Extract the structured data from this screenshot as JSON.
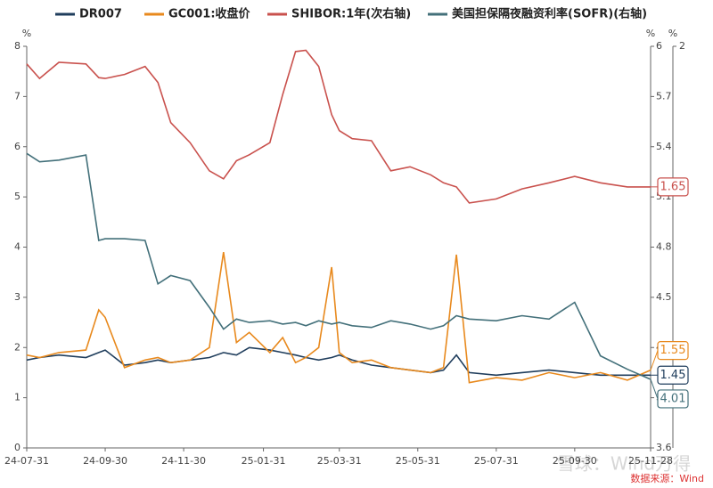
{
  "chart_data": {
    "type": "line",
    "legend_position": "top",
    "axis_units": [
      "%",
      "%",
      "%"
    ],
    "x": [
      "24-07-31",
      "24-08-10",
      "24-08-25",
      "24-09-15",
      "24-09-25",
      "24-09-30",
      "24-10-15",
      "24-10-31",
      "24-11-10",
      "24-11-20",
      "24-12-05",
      "24-12-20",
      "24-12-31",
      "25-01-10",
      "25-01-20",
      "25-02-05",
      "25-02-15",
      "25-02-25",
      "25-03-05",
      "25-03-15",
      "25-03-25",
      "25-03-31",
      "25-04-10",
      "25-04-25",
      "25-05-10",
      "25-05-25",
      "25-06-10",
      "25-06-20",
      "25-06-30",
      "25-07-10",
      "25-07-31",
      "25-08-20",
      "25-09-10",
      "25-09-30",
      "25-10-20",
      "25-11-10",
      "25-11-28"
    ],
    "xlim": [
      "24-07-31",
      "25-11-28"
    ],
    "xticks": [
      "24-07-31",
      "24-09-30",
      "24-11-30",
      "25-01-31",
      "25-03-31",
      "25-05-31",
      "25-07-31",
      "25-09-30",
      "25-11-28"
    ],
    "ylim": [
      0,
      8
    ],
    "yticks": [
      0,
      1,
      2,
      3,
      4,
      5,
      6,
      7,
      8
    ],
    "y2lim": [
      3.6,
      6
    ],
    "y2ticks": [
      3.6,
      3.9,
      4.2,
      4.5,
      4.8,
      5.1,
      5.4,
      5.7,
      6
    ],
    "y3lim": [
      1,
      2
    ],
    "y3ticks": [
      2
    ],
    "series": [
      {
        "name": "DR007",
        "color": "#1f3d5c",
        "values": [
          1.75,
          1.8,
          1.85,
          1.8,
          1.9,
          1.95,
          1.65,
          1.7,
          1.75,
          1.7,
          1.75,
          1.8,
          1.9,
          1.85,
          2.0,
          1.95,
          1.9,
          1.85,
          1.8,
          1.75,
          1.8,
          1.85,
          1.75,
          1.65,
          1.6,
          1.55,
          1.5,
          1.55,
          1.85,
          1.5,
          1.45,
          1.5,
          1.55,
          1.5,
          1.45,
          1.45,
          1.45
        ]
      },
      {
        "name": "GC001:收盘价",
        "color": "#e8891d",
        "values": [
          1.85,
          1.8,
          1.9,
          1.95,
          2.75,
          2.6,
          1.6,
          1.75,
          1.8,
          1.7,
          1.75,
          2.0,
          3.9,
          2.1,
          2.3,
          1.9,
          2.2,
          1.7,
          1.8,
          2.0,
          3.6,
          1.9,
          1.7,
          1.75,
          1.6,
          1.55,
          1.5,
          1.6,
          3.85,
          1.3,
          1.4,
          1.35,
          1.5,
          1.4,
          1.5,
          1.35,
          1.55
        ]
      },
      {
        "name": "SHIBOR:1年(次右轴)",
        "color": "#c9514d",
        "axis": "y3",
        "values": [
          1.956,
          1.92,
          1.96,
          1.956,
          1.922,
          1.92,
          1.93,
          1.95,
          1.91,
          1.81,
          1.76,
          1.69,
          1.67,
          1.715,
          1.73,
          1.76,
          1.88,
          1.987,
          1.99,
          1.95,
          1.83,
          1.79,
          1.77,
          1.765,
          1.69,
          1.7,
          1.68,
          1.66,
          1.65,
          1.61,
          1.62,
          1.645,
          1.66,
          1.676,
          1.66,
          1.65,
          1.65
        ]
      },
      {
        "name": "美国担保隔夜融资利率(SOFR)(右轴)",
        "color": "#43707a",
        "axis": "y2",
        "values": [
          5.36,
          5.31,
          5.32,
          5.35,
          4.84,
          4.85,
          4.85,
          4.84,
          4.58,
          4.63,
          4.6,
          4.44,
          4.31,
          4.37,
          4.35,
          4.36,
          4.34,
          4.35,
          4.33,
          4.36,
          4.34,
          4.35,
          4.33,
          4.32,
          4.36,
          4.34,
          4.31,
          4.33,
          4.39,
          4.37,
          4.36,
          4.39,
          4.37,
          4.47,
          4.15,
          4.07,
          4.01
        ]
      }
    ],
    "source": "数据来源：Wind",
    "watermark": "雪球：Wind万得"
  }
}
